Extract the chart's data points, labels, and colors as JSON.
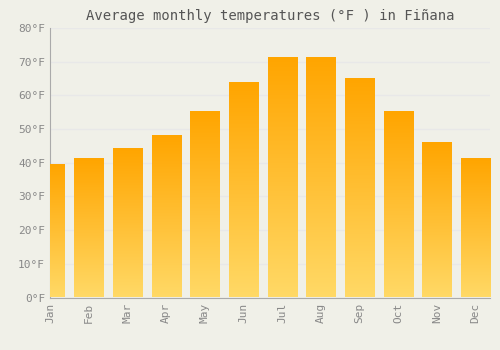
{
  "title": "Average monthly temperatures (°F ) in Fiñana",
  "months": [
    "Jan",
    "Feb",
    "Mar",
    "Apr",
    "May",
    "Jun",
    "Jul",
    "Aug",
    "Sep",
    "Oct",
    "Nov",
    "Dec"
  ],
  "values": [
    39.2,
    41.0,
    44.1,
    48.0,
    55.2,
    63.7,
    71.2,
    71.1,
    65.0,
    55.0,
    46.0,
    41.0
  ],
  "bar_color_light": "#FFD966",
  "bar_color_dark": "#FFA500",
  "ylim": [
    0,
    80
  ],
  "yticks": [
    0,
    10,
    20,
    30,
    40,
    50,
    60,
    70,
    80
  ],
  "ytick_labels": [
    "0°F",
    "10°F",
    "20°F",
    "30°F",
    "40°F",
    "50°F",
    "60°F",
    "70°F",
    "80°F"
  ],
  "background_color": "#f0f0e8",
  "grid_color": "#e8e8e8",
  "title_fontsize": 10,
  "tick_fontsize": 8,
  "font_family": "monospace",
  "bar_width": 0.75
}
